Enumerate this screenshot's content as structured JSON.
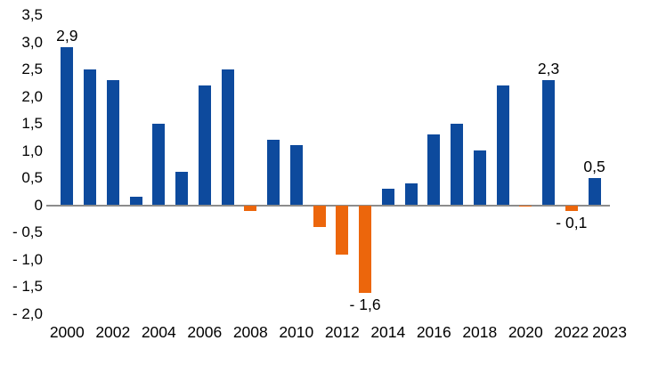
{
  "chart_data": {
    "type": "bar",
    "categories": [
      2000,
      2001,
      2002,
      2003,
      2004,
      2005,
      2006,
      2007,
      2008,
      2009,
      2010,
      2011,
      2012,
      2013,
      2014,
      2015,
      2016,
      2017,
      2018,
      2019,
      2020,
      2021,
      2022,
      2023
    ],
    "values": [
      2.9,
      2.5,
      2.3,
      0.15,
      1.5,
      0.6,
      2.2,
      2.5,
      -0.1,
      1.2,
      1.1,
      -0.4,
      -0.9,
      -1.6,
      0.3,
      0.4,
      1.3,
      1.5,
      1.0,
      2.2,
      0.0,
      2.3,
      -0.1,
      0.5
    ],
    "point_labels": {
      "2000": "2,9",
      "2013": "- 1,6",
      "2021": "2,3",
      "2022": "- 0,1",
      "2023": "0,5"
    },
    "x_tick_labels": [
      "2000",
      "2002",
      "2004",
      "2006",
      "2008",
      "2010",
      "2012",
      "2014",
      "2016",
      "2018",
      "2020",
      "2022",
      "2023"
    ],
    "y_tick_labels": [
      "3,5",
      "3,0",
      "2,5",
      "2,0",
      "1,5",
      "1,0",
      "0,5",
      "0",
      "- 0,5",
      "- 1,0",
      "- 1,5",
      "- 2,0"
    ],
    "ylim": [
      -2.0,
      3.5
    ],
    "y_step": 0.5,
    "decimal_separator": ",",
    "grid": "off",
    "legend": "none",
    "colors": {
      "positive_bar": "#0d4a9d",
      "negative_bar": "#ec660c",
      "axis_line": "#8c8c8c",
      "text": "#000000"
    }
  }
}
